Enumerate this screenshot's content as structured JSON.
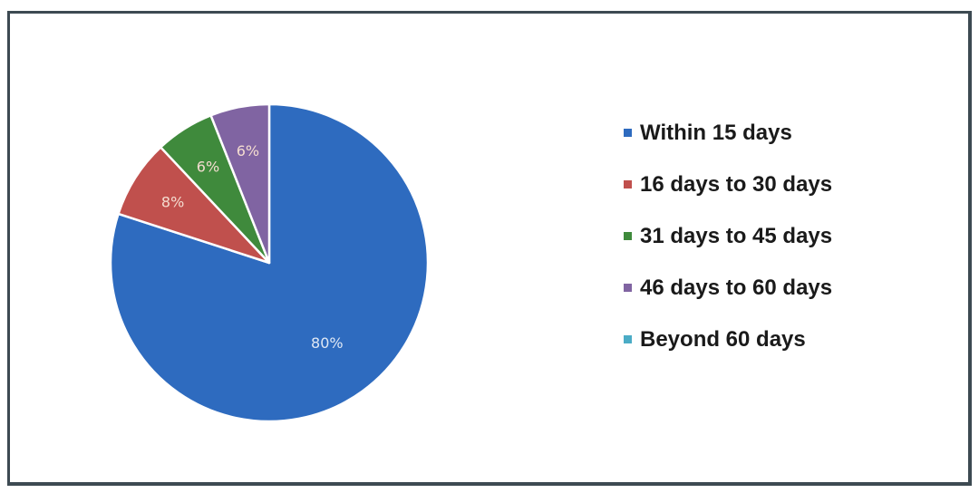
{
  "chart_data": {
    "type": "pie",
    "title": "",
    "categories": [
      "Within 15 days",
      "16 days to 30 days",
      "31 days to 45 days",
      "46 days to 60 days",
      "Beyond 60 days"
    ],
    "values": [
      80,
      8,
      6,
      6,
      0
    ],
    "data_labels": [
      "80%",
      "8%",
      "6%",
      "6%",
      ""
    ],
    "colors": [
      "#2e6bbf",
      "#c0504d",
      "#3f8a3c",
      "#8064a2",
      "#4bacc6"
    ],
    "label_colors": [
      "#dfe8f5",
      "#f4dcd0",
      "#f4dcd0",
      "#f4dcd0",
      "#ffffff"
    ],
    "legend_position": "right"
  }
}
